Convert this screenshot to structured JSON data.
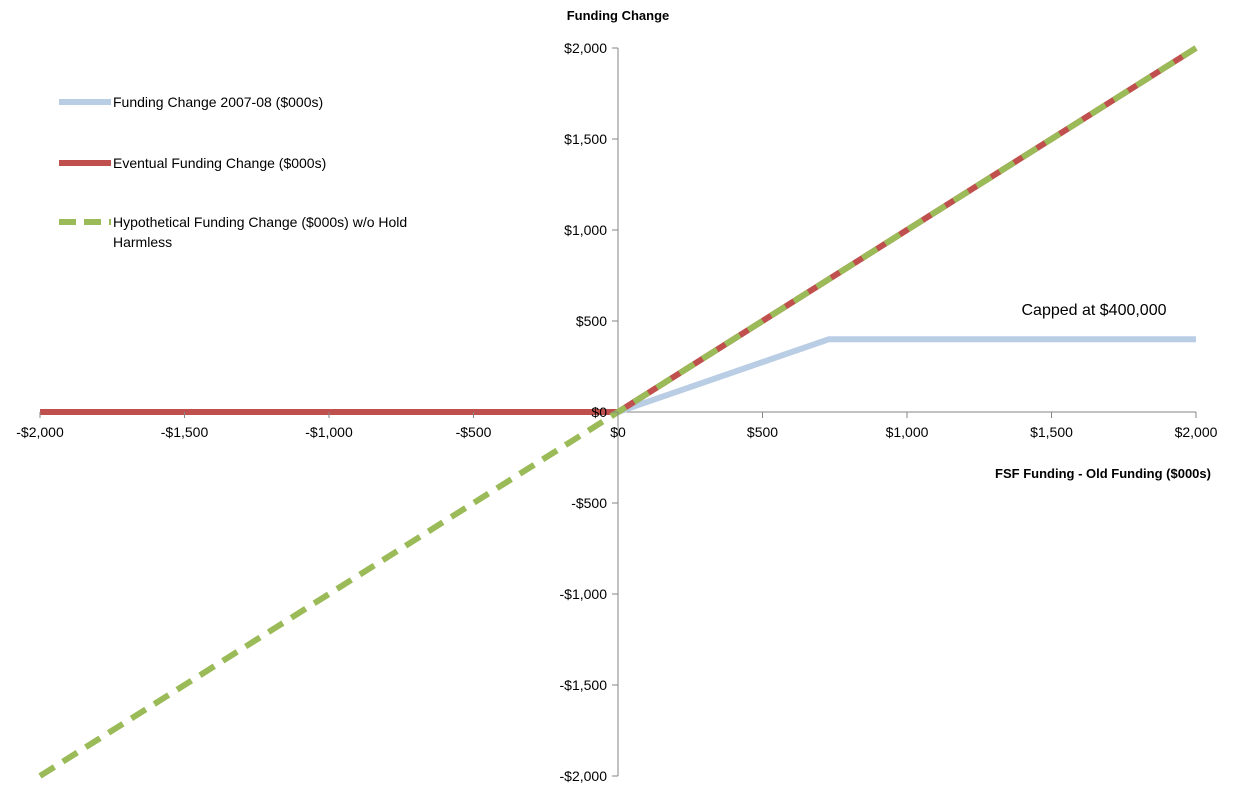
{
  "chart_data": {
    "type": "line",
    "title": "",
    "xlabel": "FSF Funding - Old Funding ($000s)",
    "ylabel": "Funding Change",
    "xlim": [
      -2000,
      2000
    ],
    "ylim": [
      -2000,
      2000
    ],
    "x_ticks": [
      -2000,
      -1500,
      -1000,
      -500,
      0,
      500,
      1000,
      1500,
      2000
    ],
    "x_tick_labels": [
      "-$2,000",
      "-$1,500",
      "-$1,000",
      "-$500",
      "$0",
      "$500",
      "$1,000",
      "$1,500",
      "$2,000"
    ],
    "y_ticks": [
      2000,
      1500,
      1000,
      500,
      0,
      -500,
      -1000,
      -1500,
      -2000
    ],
    "y_tick_labels": [
      "$2,000",
      "$1,500",
      "$1,000",
      "$500",
      "$0",
      "-$500",
      "-$1,000",
      "-$1,500",
      "-$2,000"
    ],
    "grid": false,
    "legend_position": "top-left",
    "series": [
      {
        "name": "Funding Change 2007-08 ($000s)",
        "color": "#b9cde5",
        "style": "solid",
        "points": [
          [
            0,
            0
          ],
          [
            730,
            400
          ],
          [
            2000,
            400
          ]
        ]
      },
      {
        "name": "Eventual Funding Change ($000s)",
        "color": "#c0504d",
        "style": "solid",
        "points": [
          [
            -2000,
            0
          ],
          [
            0,
            0
          ],
          [
            2000,
            2000
          ]
        ]
      },
      {
        "name": "Hypothetical Funding Change ($000s) w/o Hold Harmless",
        "color": "#9bbb59",
        "style": "dashed",
        "points": [
          [
            -2000,
            -2000
          ],
          [
            2000,
            2000
          ]
        ]
      }
    ],
    "annotations": [
      {
        "text": "Capped at $400,000",
        "x": 1600,
        "y": 560
      }
    ]
  }
}
